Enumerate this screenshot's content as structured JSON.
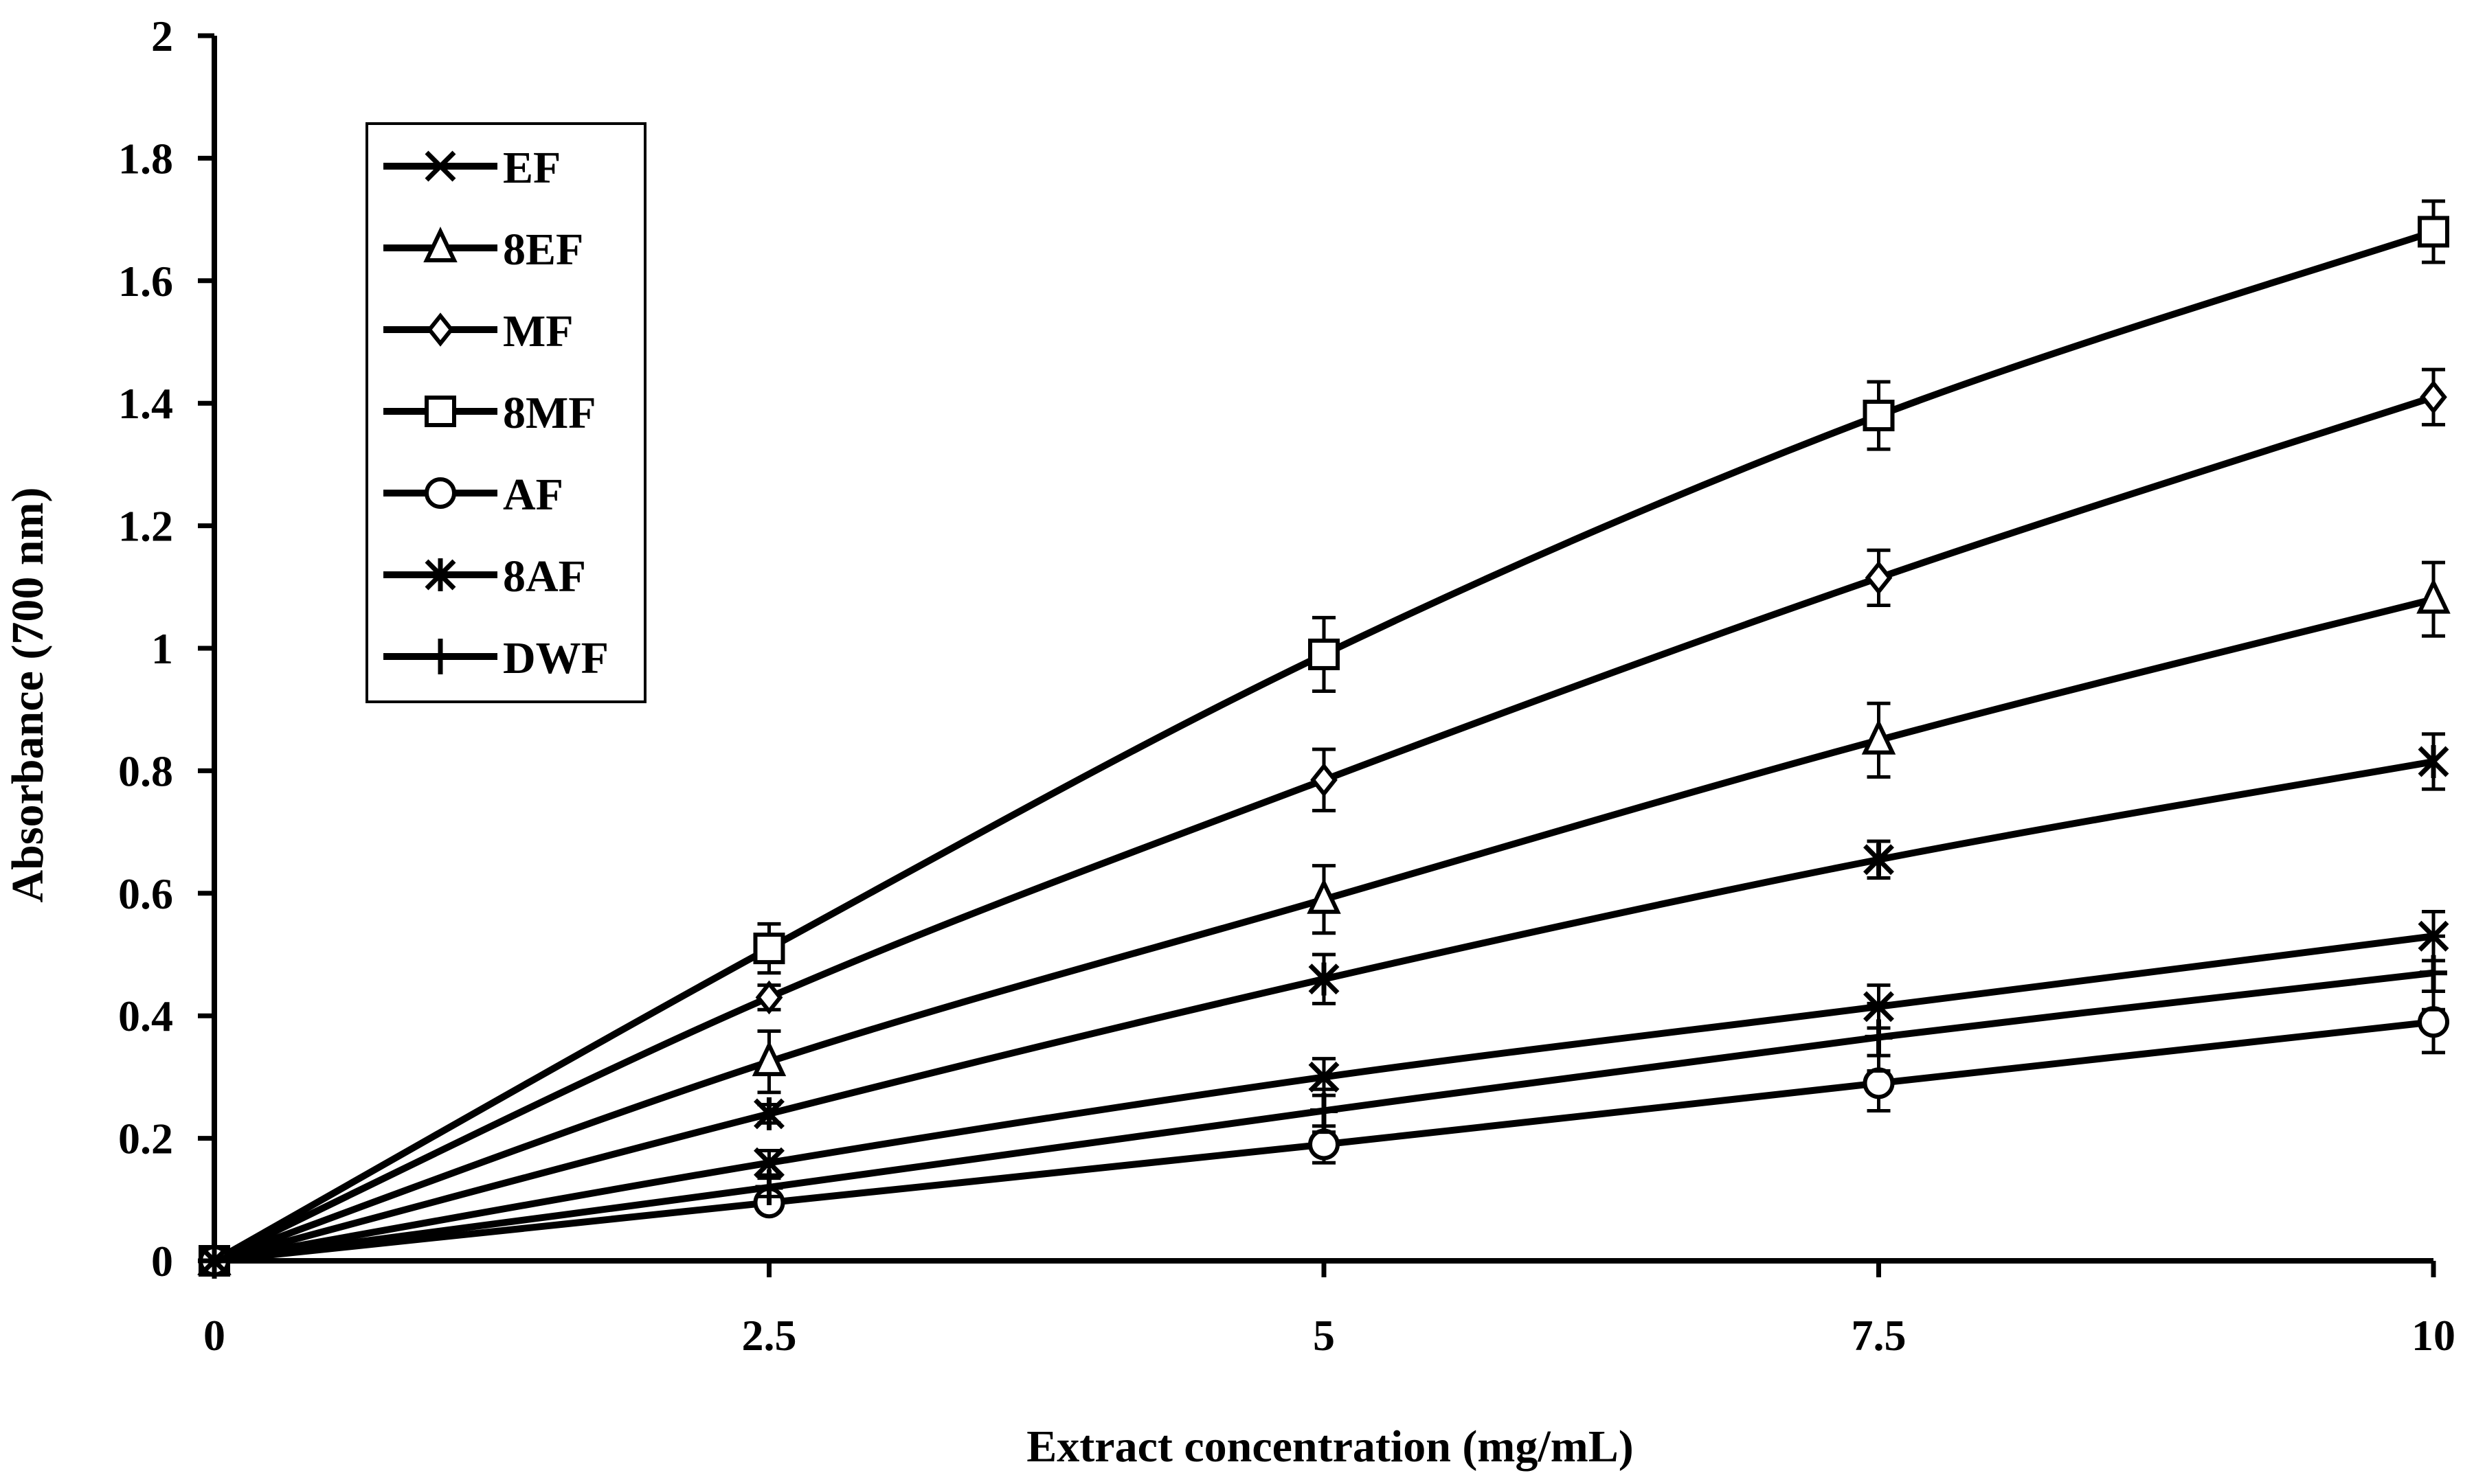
{
  "chart_data": {
    "type": "line",
    "title": "",
    "xlabel": "Extract concentration (mg/mL)",
    "ylabel": "Absorbance (700 nm)",
    "x": [
      0,
      2.5,
      5,
      7.5,
      10
    ],
    "x_tick_labels": [
      "0",
      "2.5",
      "5",
      "7.5",
      "10"
    ],
    "xlim": [
      0,
      10
    ],
    "ylim": [
      0,
      2
    ],
    "y_ticks": [
      0,
      0.2,
      0.4,
      0.6,
      0.8,
      1,
      1.2,
      1.4,
      1.6,
      1.8,
      2
    ],
    "y_tick_labels": [
      "0",
      "0.2",
      "0.4",
      "0.6",
      "0.8",
      "1",
      "1.2",
      "1.4",
      "1.6",
      "1.8",
      "2"
    ],
    "grid": false,
    "legend_position": "top-left",
    "series": [
      {
        "name": "EF",
        "marker": "x",
        "values": [
          0,
          0.16,
          0.3,
          0.415,
          0.53
        ],
        "errors": [
          0,
          0.02,
          0.03,
          0.035,
          0.04
        ]
      },
      {
        "name": "8EF",
        "marker": "triangle",
        "values": [
          0,
          0.325,
          0.59,
          0.85,
          1.08
        ],
        "errors": [
          0,
          0.05,
          0.055,
          0.06,
          0.06
        ]
      },
      {
        "name": "MF",
        "marker": "diamond",
        "values": [
          0,
          0.43,
          0.785,
          1.115,
          1.41
        ],
        "errors": [
          0,
          0.02,
          0.05,
          0.045,
          0.045
        ]
      },
      {
        "name": "8MF",
        "marker": "square",
        "values": [
          0,
          0.51,
          0.99,
          1.38,
          1.68
        ],
        "errors": [
          0,
          0.04,
          0.06,
          0.055,
          0.05
        ]
      },
      {
        "name": "AF",
        "marker": "circle",
        "values": [
          0,
          0.095,
          0.19,
          0.29,
          0.39
        ],
        "errors": [
          0,
          0.015,
          0.03,
          0.045,
          0.05
        ]
      },
      {
        "name": "8AF",
        "marker": "asterisk",
        "values": [
          0,
          0.24,
          0.46,
          0.655,
          0.815
        ],
        "errors": [
          0,
          0.015,
          0.04,
          0.03,
          0.045
        ]
      },
      {
        "name": "DWF",
        "marker": "plus",
        "values": [
          0,
          0.12,
          0.245,
          0.365,
          0.47
        ],
        "errors": [
          0,
          0.015,
          0.035,
          0.055,
          0.06
        ]
      }
    ]
  }
}
